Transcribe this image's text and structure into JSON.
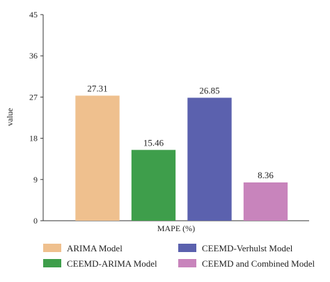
{
  "chart_data": {
    "type": "bar",
    "title": "",
    "xlabel": "MAPE (%)",
    "ylabel": "value",
    "ylim": [
      0,
      45
    ],
    "yticks": [
      0,
      9,
      18,
      27,
      36,
      45
    ],
    "grid": false,
    "legend": "bottom",
    "categories": [
      "ARIMA Model",
      "CEEMD-ARIMA Model",
      "CEEMD-Verhulst Model",
      "CEEMD and Combined Model"
    ],
    "values": [
      27.31,
      15.46,
      26.85,
      8.36
    ],
    "value_labels": [
      "27.31",
      "15.46",
      "26.85",
      "8.36"
    ],
    "colors": [
      "#EFC08E",
      "#3E9E4B",
      "#5B61AE",
      "#C884BC"
    ]
  }
}
